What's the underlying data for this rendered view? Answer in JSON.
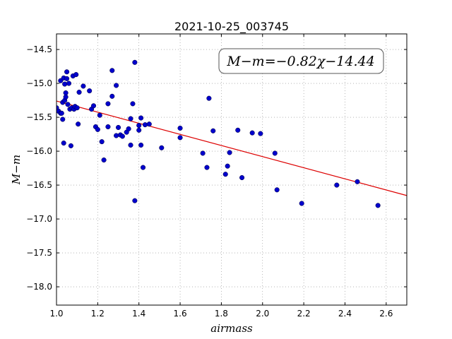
{
  "chart_data": {
    "type": "scatter",
    "title": "2021-10-25_003745",
    "xlabel": "airmass",
    "ylabel": "M−m",
    "annotation": "M−m=−0.82χ−14.44",
    "xlim": [
      1.0,
      2.7
    ],
    "ylim": [
      -18.27,
      -14.27
    ],
    "inverted_y": true,
    "grid": true,
    "x_ticks": [
      "1.0",
      "1.2",
      "1.4",
      "1.6",
      "1.8",
      "2.0",
      "2.2",
      "2.4",
      "2.6"
    ],
    "y_ticks": [
      "−14.5",
      "−15.0",
      "−15.5",
      "−16.0",
      "−16.5",
      "−17.0",
      "−17.5",
      "−18.0"
    ],
    "colors": {
      "points": "#0000cc",
      "fit_line": "#dd0000"
    },
    "fit": {
      "slope": -0.82,
      "intercept": -14.44
    },
    "points": {
      "x": [
        1.0,
        1.01,
        1.02,
        1.02,
        1.025,
        1.03,
        1.03,
        1.035,
        1.035,
        1.04,
        1.04,
        1.045,
        1.045,
        1.05,
        1.05,
        1.055,
        1.06,
        1.065,
        1.07,
        1.075,
        1.08,
        1.085,
        1.09,
        1.095,
        1.1,
        1.105,
        1.11,
        1.13,
        1.16,
        1.17,
        1.18,
        1.19,
        1.2,
        1.21,
        1.22,
        1.23,
        1.25,
        1.25,
        1.27,
        1.27,
        1.29,
        1.29,
        1.3,
        1.31,
        1.32,
        1.34,
        1.35,
        1.36,
        1.36,
        1.37,
        1.38,
        1.38,
        1.4,
        1.4,
        1.41,
        1.41,
        1.42,
        1.43,
        1.45,
        1.51,
        1.6,
        1.6,
        1.71,
        1.73,
        1.74,
        1.76,
        1.82,
        1.83,
        1.84,
        1.88,
        1.9,
        1.95,
        1.99,
        2.06,
        2.07,
        2.19,
        2.36,
        2.46,
        2.56
      ],
      "y": [
        -15.36,
        -15.41,
        -14.96,
        -15.44,
        -15.44,
        -15.28,
        -15.53,
        -14.92,
        -15.88,
        -15.01,
        -15.25,
        -15.14,
        -15.2,
        -14.83,
        -14.93,
        -15.31,
        -15.0,
        -15.38,
        -15.92,
        -15.36,
        -14.89,
        -15.38,
        -15.34,
        -14.87,
        -15.36,
        -15.6,
        -15.13,
        -15.04,
        -15.11,
        -15.38,
        -15.33,
        -15.64,
        -15.68,
        -15.47,
        -15.86,
        -16.13,
        -15.3,
        -15.64,
        -14.81,
        -15.19,
        -15.03,
        -15.77,
        -15.65,
        -15.76,
        -15.78,
        -15.72,
        -15.67,
        -15.52,
        -15.91,
        -15.3,
        -14.69,
        -16.73,
        -15.69,
        -15.62,
        -15.91,
        -15.51,
        -16.24,
        -15.61,
        -15.6,
        -15.95,
        -15.66,
        -15.8,
        -16.03,
        -16.24,
        -15.22,
        -15.7,
        -16.34,
        -16.22,
        -16.02,
        -15.69,
        -16.39,
        -15.73,
        -15.74,
        -16.03,
        -16.57,
        -16.77,
        -16.5,
        -16.45,
        -16.8
      ]
    }
  }
}
